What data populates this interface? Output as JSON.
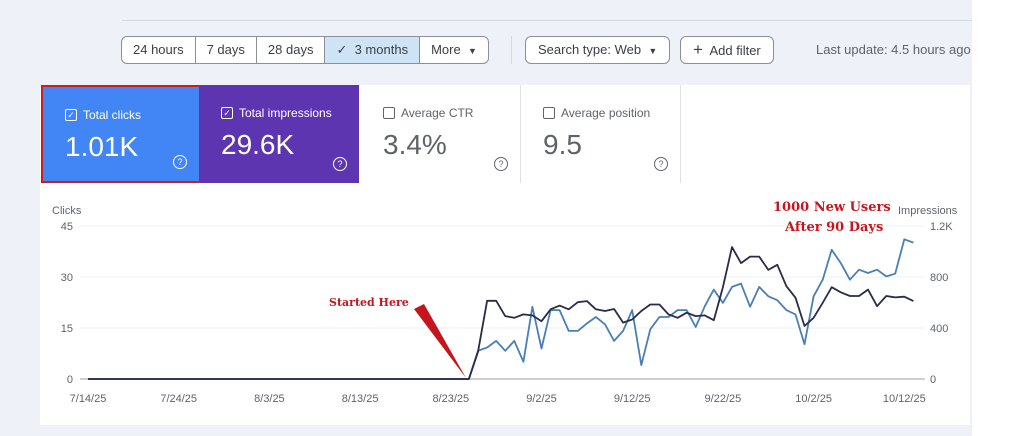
{
  "toolbar": {
    "ranges": [
      "24 hours",
      "7 days",
      "28 days",
      "3 months",
      "More"
    ],
    "selected_check": "✓",
    "search_type": "Search type: Web",
    "add_filter": "Add filter",
    "last_update": "Last update: 4.5 hours ago"
  },
  "metrics": [
    {
      "label": "Total clicks",
      "value": "1.01K",
      "checked": true
    },
    {
      "label": "Total impressions",
      "value": "29.6K",
      "checked": true
    },
    {
      "label": "Average CTR",
      "value": "3.4%",
      "checked": false
    },
    {
      "label": "Average position",
      "value": "9.5",
      "checked": false
    }
  ],
  "colors": {
    "clicks": "#2a2a4a",
    "impressions": "#4a7fb5",
    "annotation": "#c5161d"
  },
  "annotations": {
    "start": "Started Here",
    "end_line1": "1000 New Users",
    "end_line2": "After 90 Days"
  },
  "chart_data": {
    "type": "line",
    "start_date": "7/14/25",
    "x_ticks": [
      "7/14/25",
      "7/24/25",
      "8/3/25",
      "8/13/25",
      "8/23/25",
      "9/2/25",
      "9/12/25",
      "9/22/25",
      "10/2/25",
      "10/12/25"
    ],
    "ylabel_left": "Clicks",
    "yticks_left": [
      "0",
      "15",
      "30",
      "45"
    ],
    "ylim_left": [
      0,
      45
    ],
    "ylabel_right": "Impressions",
    "yticks_right": [
      "0",
      "400",
      "800",
      "1.2K"
    ],
    "ylim_right": [
      0,
      1200
    ],
    "zero_days_before": 42,
    "series": [
      {
        "name": "Clicks",
        "axis": "left",
        "values": [
          0,
          8,
          23,
          23,
          18.5,
          18,
          19,
          18.7,
          17,
          20.5,
          21.6,
          20.5,
          22.6,
          22.9,
          20.5,
          20,
          20.6,
          16.6,
          17.5,
          20,
          21.9,
          21.9,
          19,
          18,
          19.5,
          18.5,
          18.7,
          17.3,
          27,
          38.8,
          34.1,
          36,
          36,
          32.1,
          33.6,
          27.3,
          23.9,
          15.6,
          18,
          22.4,
          27,
          25.5,
          24.4,
          24.4,
          26.3,
          21.4,
          24.4,
          24,
          24.2,
          22.9
        ]
      },
      {
        "name": "Impressions",
        "axis": "right",
        "values": [
          0,
          221,
          247,
          299,
          221,
          299,
          135,
          566,
          239,
          540,
          540,
          377,
          377,
          436,
          486,
          429,
          299,
          377,
          540,
          109,
          390,
          486,
          486,
          540,
          540,
          408,
          571,
          701,
          597,
          722,
          748,
          566,
          722,
          649,
          618,
          540,
          506,
          273,
          649,
          779,
          1013,
          909,
          779,
          857,
          831,
          857,
          805,
          826,
          1096,
          1070
        ]
      }
    ]
  }
}
